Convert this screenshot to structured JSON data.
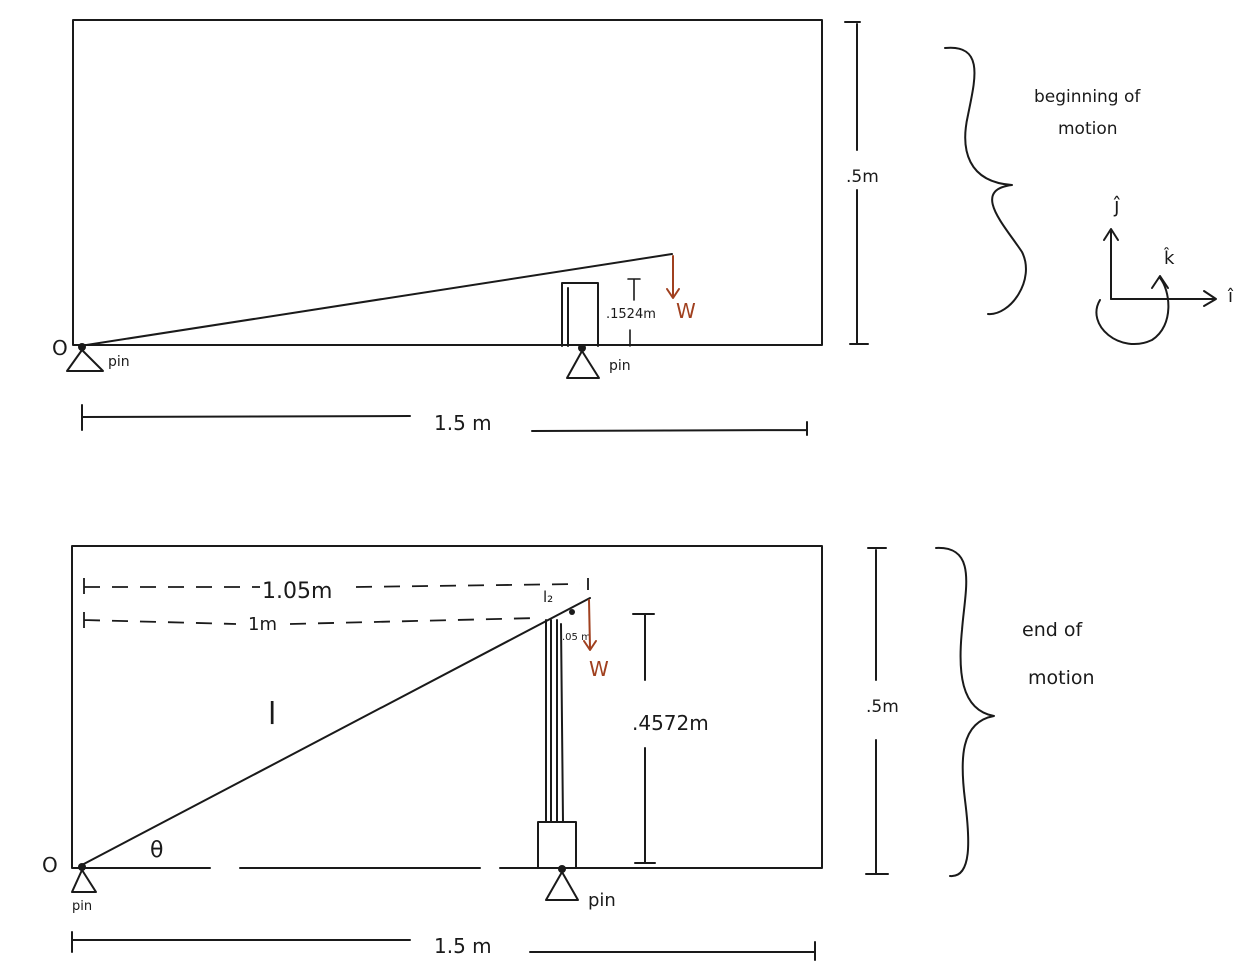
{
  "top": {
    "origin_label": "O",
    "pin_left": "pin",
    "pin_right": "pin",
    "height_label": ".5m",
    "support_height": ".1524m",
    "weight": "W",
    "width_label": "1.5 m",
    "caption_line1": "beginning of",
    "caption_line2": "motion",
    "axis_j": "ĵ",
    "axis_k": "k̂",
    "axis_i": "î"
  },
  "bottom": {
    "origin_label": "O",
    "pin_left": "pin",
    "pin_right": "pin",
    "dim_long": "1.05m",
    "dim_short": "1m",
    "l2_label": "l₂",
    "offset": ".05 m",
    "weight": "W",
    "beam_label": "l",
    "angle_label": "θ",
    "support_height": ".4572m",
    "height_label": ".5m",
    "width_label": "1.5 m",
    "caption_line1": "end of",
    "caption_line2": "motion"
  },
  "colors": {
    "ink": "#1a1a1a",
    "force": "#a0401f"
  }
}
